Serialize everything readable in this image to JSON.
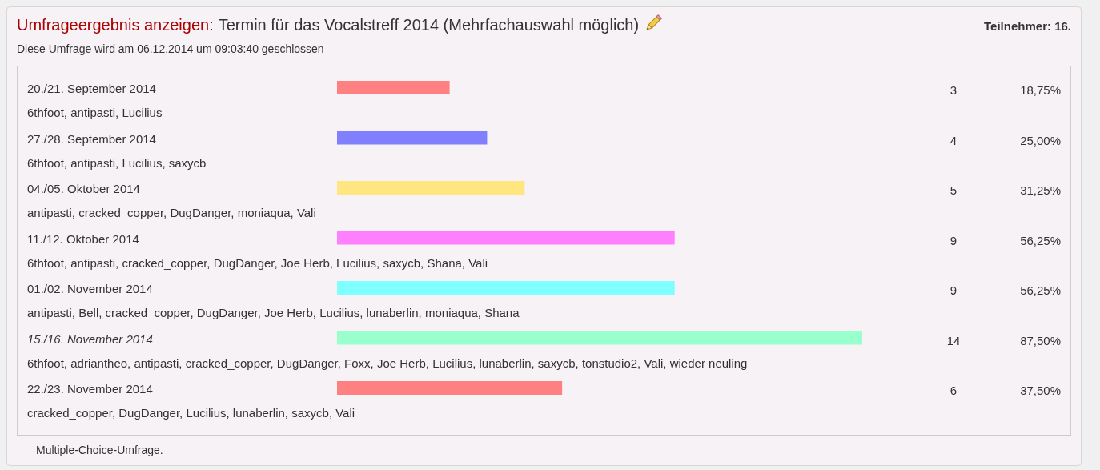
{
  "chart_data": {
    "type": "bar",
    "orientation": "horizontal",
    "title": "Umfrageergebnis anzeigen:",
    "subtitle": "Termin für das Vocalstreff 2014 (Mehrfachauswahl möglich)",
    "categories": [
      "20./21. September 2014",
      "27./28. September 2014",
      "04./05. Oktober 2014",
      "11./12. Oktober 2014",
      "01./02. November 2014",
      "15./16. November 2014",
      "22./23. November 2014"
    ],
    "values": [
      3,
      4,
      5,
      9,
      9,
      14,
      6
    ],
    "colors": [
      "#ff8080",
      "#8080ff",
      "#ffe680",
      "#ff80ff",
      "#80ffff",
      "#99ffcc",
      "#ff8080"
    ],
    "data_labels": true,
    "annotations": [
      "Diese Umfrage wird am 06.12.2014 um 09:03:40 geschlossen",
      "Teilnehmer: 16.",
      "18,75%",
      "25,00%",
      "31,25%",
      "56,25%",
      "56,25%",
      "87,50%",
      "37,50%",
      "6thfoot, antipasti, Lucilius",
      "6thfoot, antipasti, Lucilius, saxycb",
      "antipasti, cracked_copper, DugDanger, moniaqua, Vali",
      "6thfoot, antipasti, cracked_copper, DugDanger, Joe Herb, Lucilius, saxycb, Shana, Vali",
      "antipasti, Bell, cracked_copper, DugDanger, Joe Herb, Lucilius, lunaberlin, moniaqua, Shana",
      "6thfoot, adriantheo, antipasti, cracked_copper, DugDanger, Foxx, Joe Herb, Lucilius, lunaberlin, saxycb, tonstudio2, Vali, wieder neuling",
      "cracked_copper, DugDanger, Lucilius, lunaberlin, saxycb, Vali",
      "Multiple-Choice-Umfrage."
    ]
  }
}
